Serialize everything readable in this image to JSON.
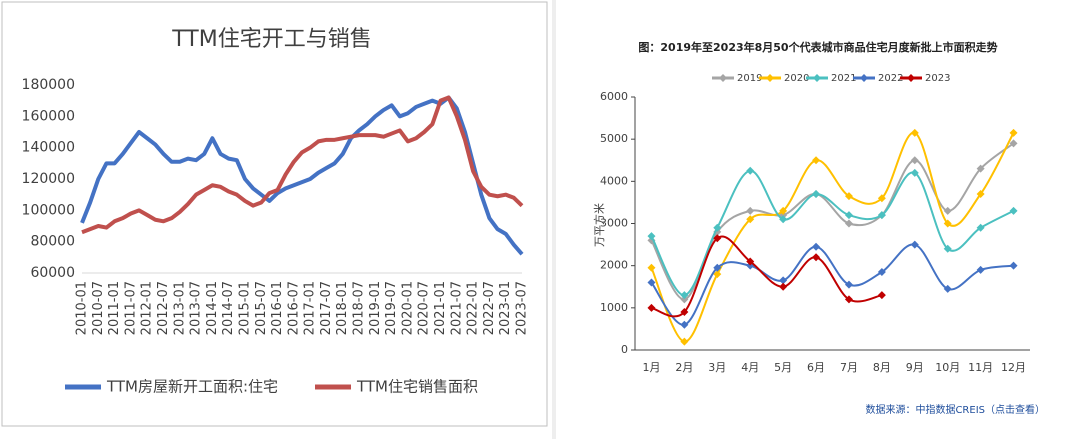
{
  "chart_data": [
    {
      "type": "line",
      "title": "TTM住宅开工与销售",
      "categories": [
        "2010-01",
        null,
        "2010-07",
        null,
        "2011-01",
        null,
        "2011-07",
        null,
        "2012-01",
        null,
        "2012-07",
        null,
        "2013-01",
        null,
        "2013-07",
        null,
        "2014-01",
        null,
        "2014-07",
        null,
        "2015-01",
        null,
        "2015-07",
        null,
        "2016-01",
        null,
        "2016-07",
        null,
        "2017-01",
        null,
        "2017-07",
        null,
        "2018-01",
        null,
        "2018-07",
        null,
        "2019-01",
        null,
        "2019-07",
        null,
        "2020-01",
        null,
        "2020-07",
        null,
        "2021-01",
        null,
        "2021-07",
        null,
        "2022-01",
        null,
        "2022-07",
        null,
        "2023-01",
        null,
        "2023-07"
      ],
      "series": [
        {
          "name": "TTM房屋新开工面积:住宅",
          "color": "#4472c4",
          "values": [
            92000,
            105000,
            120000,
            130000,
            130000,
            136000,
            143000,
            150000,
            146000,
            142000,
            136000,
            131000,
            131000,
            133000,
            132000,
            136000,
            146000,
            136000,
            133000,
            132000,
            120000,
            114000,
            110000,
            106000,
            111000,
            114000,
            116000,
            118000,
            120000,
            124000,
            127000,
            130000,
            136000,
            146000,
            151000,
            155000,
            160000,
            164000,
            167000,
            160000,
            162000,
            166000,
            168000,
            170000,
            168000,
            172000,
            165000,
            150000,
            130000,
            110000,
            95000,
            88000,
            85000,
            78000,
            72000
          ]
        },
        {
          "name": "TTM住宅销售面积",
          "color": "#c0504d",
          "values": [
            86000,
            88000,
            90000,
            89000,
            93000,
            95000,
            98000,
            100000,
            97000,
            94000,
            93000,
            95000,
            99000,
            104000,
            110000,
            113000,
            116000,
            115000,
            112000,
            110000,
            106000,
            103000,
            105000,
            111000,
            113000,
            123000,
            131000,
            137000,
            140000,
            144000,
            145000,
            145000,
            146000,
            147000,
            148000,
            148000,
            148000,
            147000,
            149000,
            151000,
            144000,
            146000,
            150000,
            155000,
            170000,
            172000,
            160000,
            145000,
            125000,
            115000,
            110000,
            109000,
            110000,
            108000,
            103000
          ]
        }
      ],
      "ylim": [
        60000,
        180000
      ],
      "yticks": [
        60000,
        80000,
        100000,
        120000,
        140000,
        160000,
        180000
      ],
      "grid": false,
      "legend": "bottom",
      "smooth": false
    },
    {
      "type": "line",
      "title": "图：2019年至2023年8月50个代表城市商品住宅月度新批上市面积走势",
      "y_label": "万平方米",
      "source": "数据来源：中指数据CREIS（点击查看）",
      "categories": [
        "1月",
        "2月",
        "3月",
        "4月",
        "5月",
        "6月",
        "7月",
        "8月",
        "9月",
        "10月",
        "11月",
        "12月"
      ],
      "series": [
        {
          "name": "2019",
          "color": "#a5a5a5",
          "values": [
            2600,
            1200,
            2800,
            3300,
            3200,
            3700,
            3000,
            3200,
            4500,
            3300,
            4300,
            4900
          ]
        },
        {
          "name": "2020",
          "color": "#ffc000",
          "values": [
            1950,
            200,
            1800,
            3100,
            3300,
            4500,
            3650,
            3600,
            5150,
            3000,
            3700,
            5150
          ]
        },
        {
          "name": "2021",
          "color": "#4bc0c0",
          "values": [
            2700,
            1300,
            2900,
            4250,
            3100,
            3700,
            3200,
            3200,
            4200,
            2400,
            2900,
            3300
          ]
        },
        {
          "name": "2022",
          "color": "#4472c4",
          "values": [
            1600,
            600,
            1950,
            2000,
            1650,
            2450,
            1550,
            1850,
            2500,
            1450,
            1900,
            2000
          ]
        },
        {
          "name": "2023",
          "color": "#c00000",
          "values": [
            1000,
            900,
            2650,
            2100,
            1500,
            2200,
            1200,
            1300,
            null,
            null,
            null,
            null
          ]
        }
      ],
      "ylim": [
        0,
        6000
      ],
      "yticks": [
        0,
        1000,
        2000,
        3000,
        4000,
        5000,
        6000
      ],
      "grid": false,
      "legend": "top",
      "smooth": true,
      "markers": true
    }
  ]
}
